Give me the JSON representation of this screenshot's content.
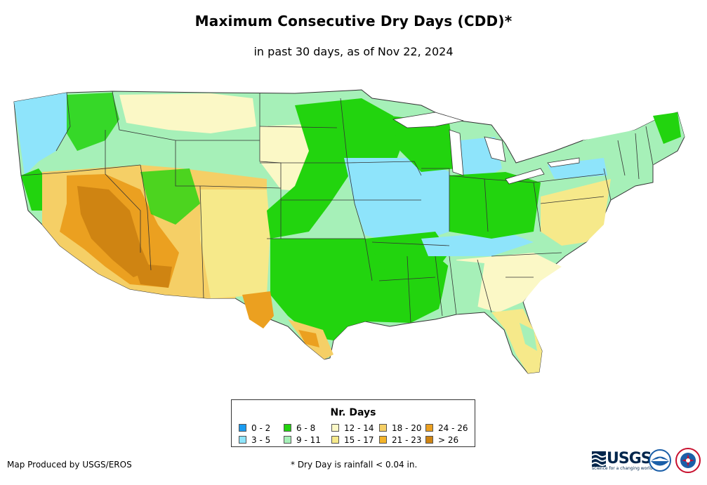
{
  "title": "Maximum Consecutive Dry Days (CDD)*",
  "subtitle": "in past 30 days, as of Nov 22, 2024",
  "legend": {
    "title": "Nr. Days",
    "items": [
      {
        "label": "0 - 2",
        "color": "#1a9bf0"
      },
      {
        "label": "3 - 5",
        "color": "#8ee4fb"
      },
      {
        "label": "6 - 8",
        "color": "#22d40e"
      },
      {
        "label": "9 - 11",
        "color": "#a6f0b8"
      },
      {
        "label": "12 - 14",
        "color": "#fbf8c6"
      },
      {
        "label": "15 - 17",
        "color": "#f6e98a"
      },
      {
        "label": "18 - 20",
        "color": "#f5cf66"
      },
      {
        "label": "21 - 23",
        "color": "#f3b329"
      },
      {
        "label": "24 - 26",
        "color": "#eba020"
      },
      {
        "label": "> 26",
        "color": "#cf8412"
      }
    ]
  },
  "footer": {
    "producer": "Map Produced by USGS/EROS",
    "note": "* Dry Day is rainfall < 0.04 in."
  },
  "logos": {
    "usgs_text": "USGS",
    "usgs_tagline": "science for a changing world",
    "noaa_icon": "noaa-logo-icon",
    "nws_icon": "nws-logo-icon"
  }
}
